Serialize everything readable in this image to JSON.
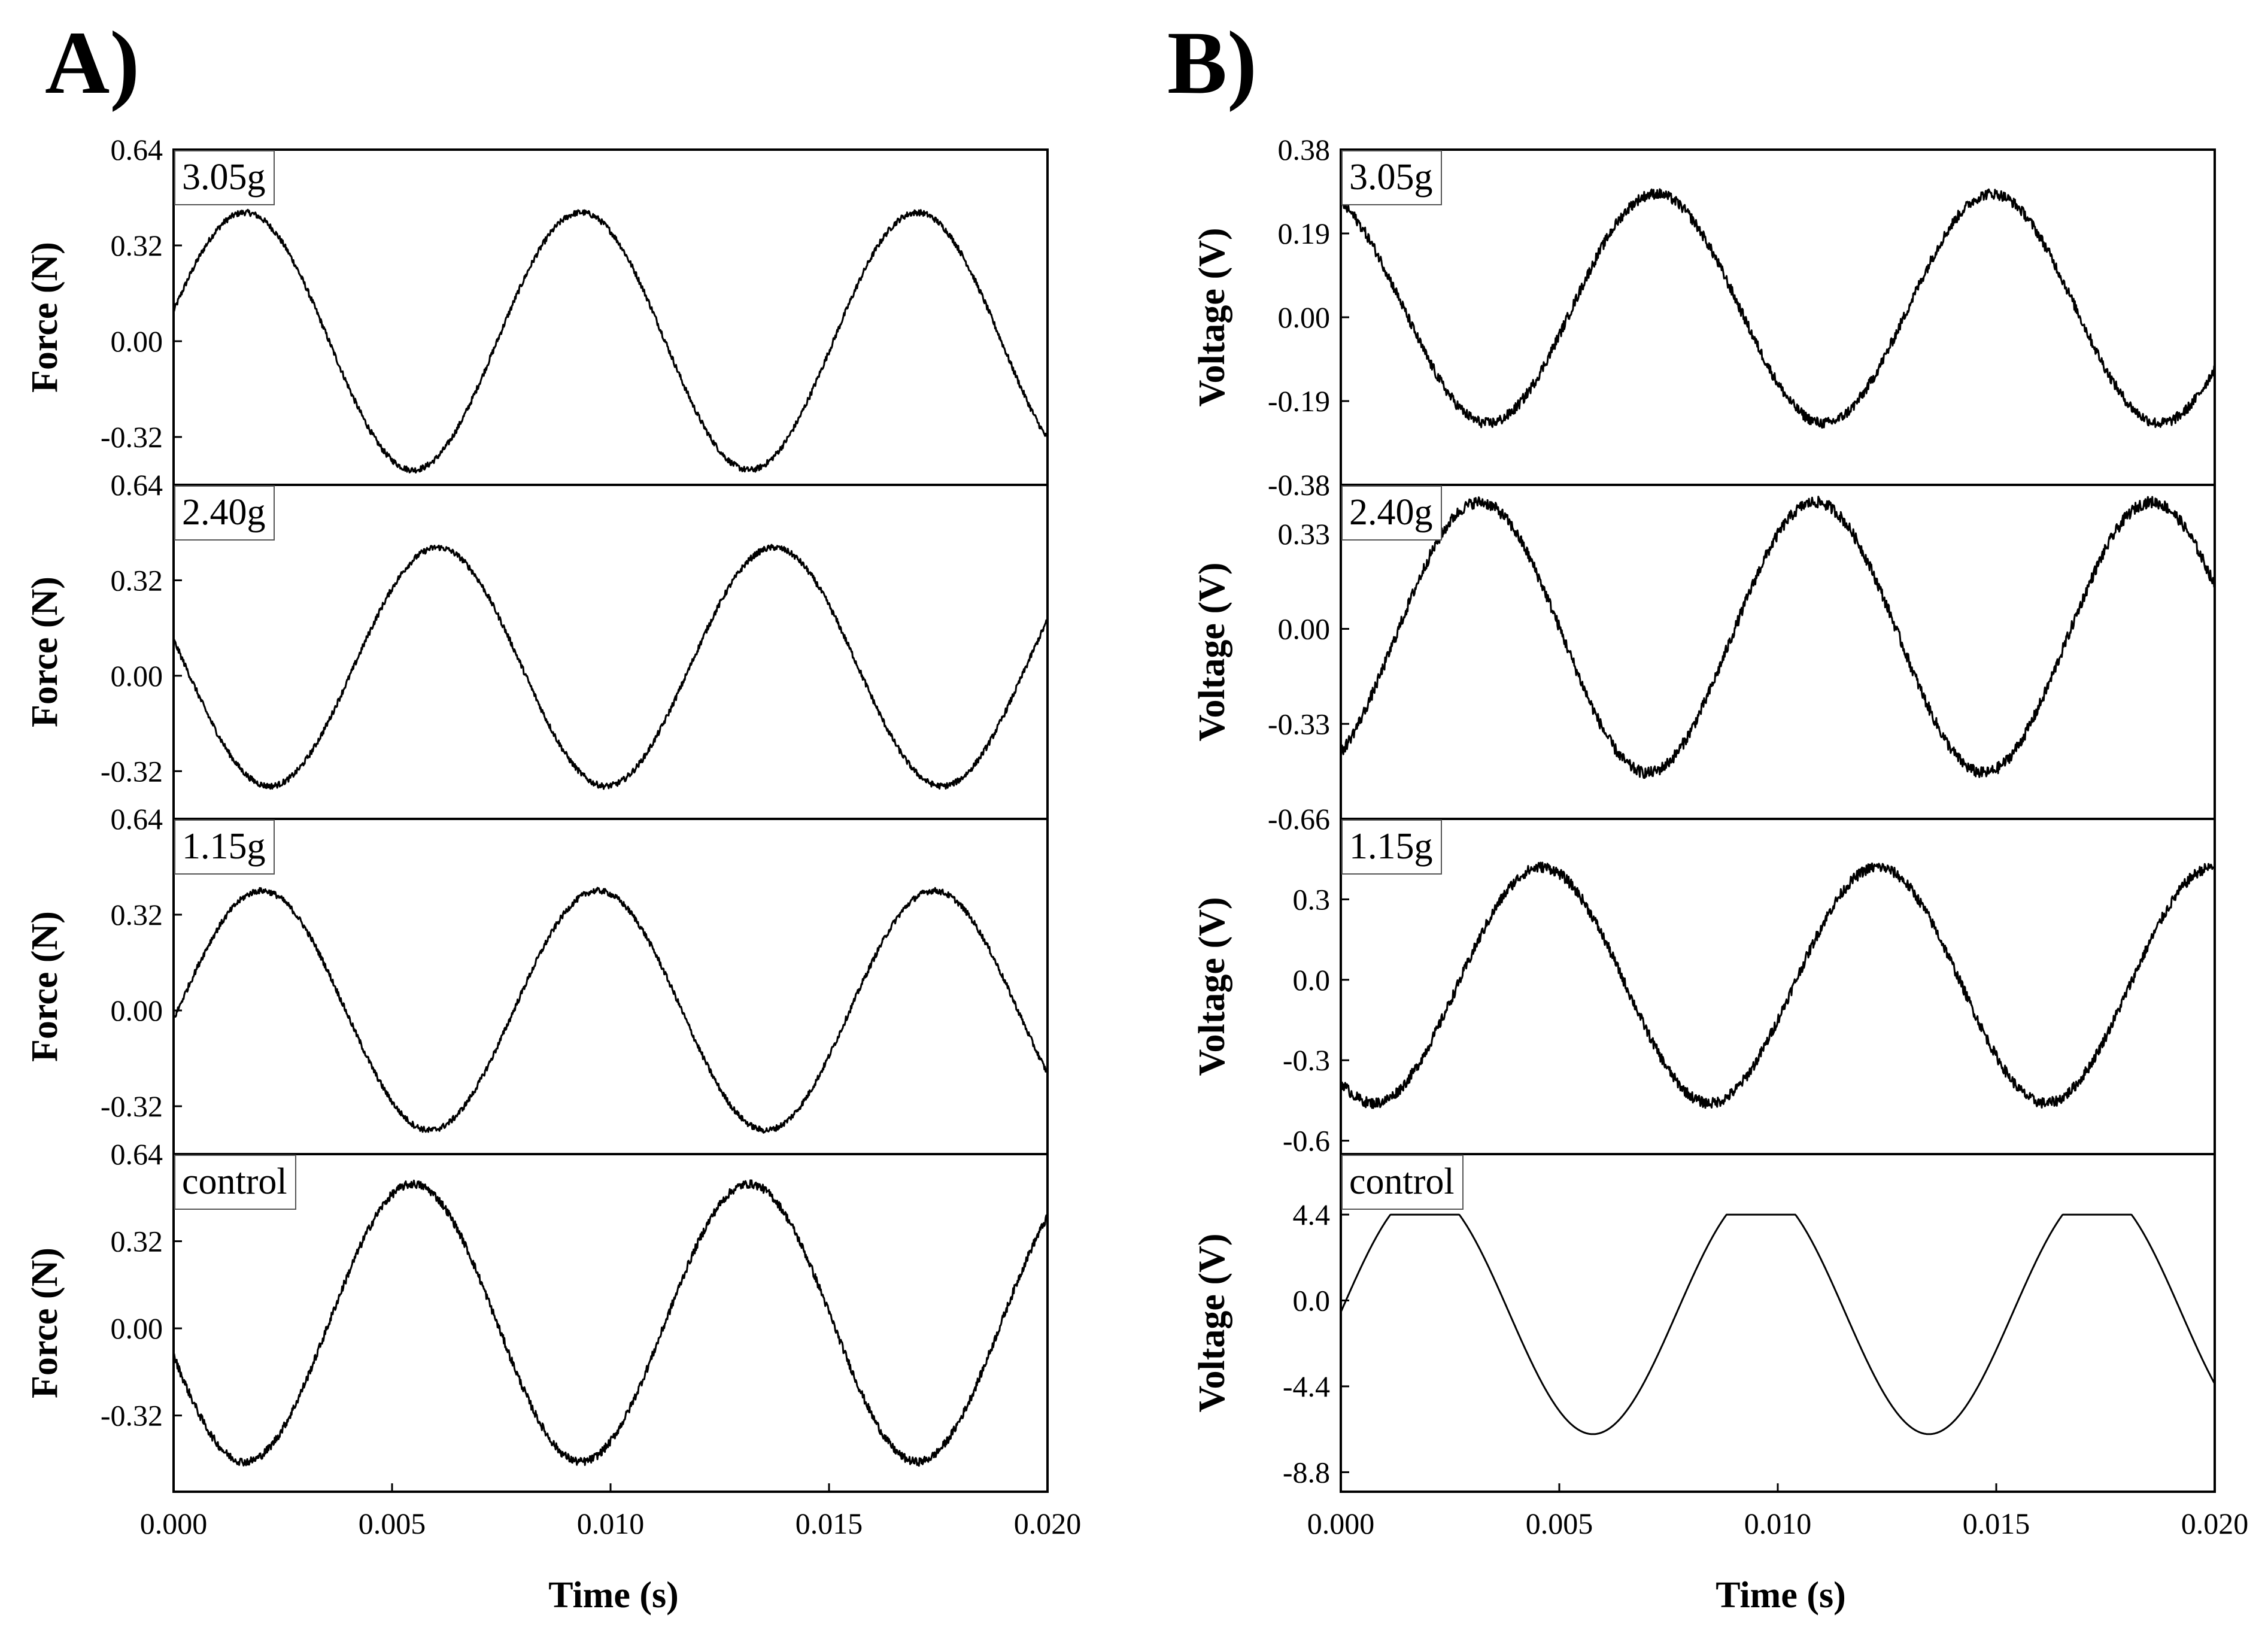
{
  "figure": {
    "panel_a_label": "A)",
    "panel_b_label": "B)",
    "x_axis_label": "Time (s)"
  },
  "chart_data": [
    {
      "panel": "A)",
      "type": "line",
      "ylabel": "Force (N)",
      "xlim": [
        0,
        0.02
      ],
      "x_ticks": [
        "0.000",
        "0.005",
        "0.010",
        "0.015",
        "0.020"
      ],
      "subplots": [
        {
          "label": "3.05g",
          "ylim": [
            -0.48,
            0.64
          ],
          "y_ticks": [
            "0.64",
            "0.32",
            "0.00",
            "-0.32"
          ],
          "y_tick_values": [
            0.64,
            0.32,
            0.0,
            -0.32
          ],
          "signal": {
            "frequency_hz": 130,
            "amplitude": 0.43,
            "offset": 0.0,
            "start_value": 0.1,
            "rising_at_start": true,
            "noise": 0.01
          }
        },
        {
          "label": "2.40g",
          "ylim": [
            -0.48,
            0.64
          ],
          "y_ticks": [
            "0.64",
            "0.32",
            "0.00",
            "-0.32"
          ],
          "y_tick_values": [
            0.64,
            0.32,
            0.0,
            -0.32
          ],
          "signal": {
            "frequency_hz": 130,
            "amplitude": 0.4,
            "offset": 0.03,
            "start_value": 0.12,
            "rising_at_start": false,
            "noise": 0.01
          }
        },
        {
          "label": "1.15g",
          "ylim": [
            -0.48,
            0.64
          ],
          "y_ticks": [
            "0.64",
            "0.32",
            "0.00",
            "-0.32"
          ],
          "y_tick_values": [
            0.64,
            0.32,
            0.0,
            -0.32
          ],
          "signal": {
            "frequency_hz": 130,
            "amplitude": 0.4,
            "offset": 0.0,
            "start_value": -0.03,
            "rising_at_start": true,
            "noise": 0.01
          }
        },
        {
          "label": "control",
          "ylim": [
            -0.6,
            0.64
          ],
          "y_ticks": [
            "0.64",
            "0.32",
            "0.00",
            "-0.32"
          ],
          "y_tick_values": [
            0.64,
            0.32,
            0.0,
            -0.32
          ],
          "signal": {
            "frequency_hz": 130,
            "amplitude": 0.51,
            "offset": 0.02,
            "start_value": -0.1,
            "rising_at_start": false,
            "noise": 0.015
          }
        }
      ]
    },
    {
      "panel": "B)",
      "type": "line",
      "ylabel": "Voltage (V)",
      "xlim": [
        0,
        0.02
      ],
      "x_ticks": [
        "0.000",
        "0.005",
        "0.010",
        "0.015",
        "0.020"
      ],
      "subplots": [
        {
          "label": "3.05g",
          "ylim": [
            -0.38,
            0.38
          ],
          "y_ticks": [
            "0.38",
            "0.19",
            "0.00",
            "-0.19",
            "-0.38"
          ],
          "y_tick_values": [
            0.38,
            0.19,
            0.0,
            -0.19,
            -0.38
          ],
          "signal": {
            "frequency_hz": 130,
            "amplitude": 0.26,
            "offset": 0.02,
            "start_value": 0.26,
            "rising_at_start": false,
            "noise": 0.012
          }
        },
        {
          "label": "2.40g",
          "ylim": [
            -0.66,
            0.5
          ],
          "y_ticks": [
            "0.33",
            "0.00",
            "-0.33",
            "-0.66"
          ],
          "y_tick_values": [
            0.33,
            0.0,
            -0.33,
            -0.66
          ],
          "signal": {
            "frequency_hz": 130,
            "amplitude": 0.47,
            "offset": -0.03,
            "start_value": -0.43,
            "rising_at_start": true,
            "noise": 0.02
          }
        },
        {
          "label": "1.15g",
          "ylim": [
            -0.65,
            0.6
          ],
          "y_ticks": [
            "0.3",
            "0.0",
            "-0.3",
            "-0.6"
          ],
          "y_tick_values": [
            0.3,
            0.0,
            -0.3,
            -0.6
          ],
          "signal": {
            "frequency_hz": 130,
            "amplitude": 0.44,
            "offset": -0.02,
            "start_value": -0.38,
            "rising_at_start": false,
            "noise": 0.02
          }
        },
        {
          "label": "control",
          "ylim": [
            -9.8,
            7.5
          ],
          "y_ticks": [
            "4.4",
            "0.0",
            "-4.4",
            "-8.8"
          ],
          "y_tick_values": [
            4.4,
            0.0,
            -4.4,
            -8.8
          ],
          "signal": {
            "frequency_hz": 130,
            "amplitude": 6.25,
            "offset": -0.6,
            "start_value": -0.6,
            "rising_at_start": true,
            "clip_max": 4.4,
            "noise": 0.0
          }
        }
      ]
    }
  ]
}
